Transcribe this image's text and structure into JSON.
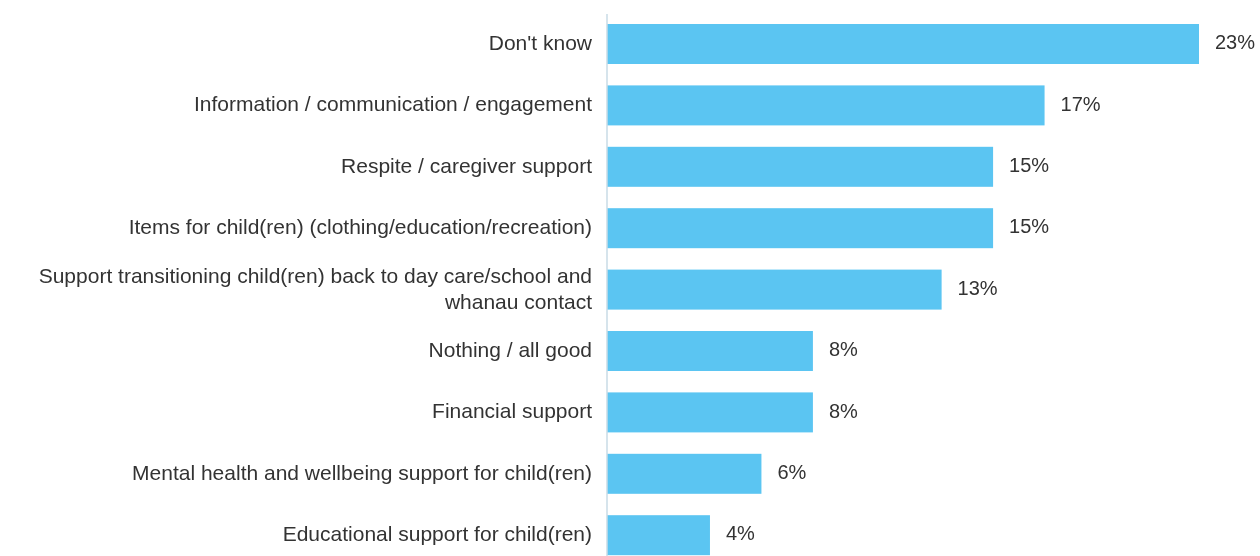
{
  "chart_data": {
    "type": "bar",
    "orientation": "horizontal",
    "categories": [
      "Don't know",
      "Information / communication / engagement",
      "Respite / caregiver support",
      "Items for child(ren) (clothing/education/recreation)",
      "Support transitioning child(ren) back to day care/school and whanau contact",
      "Nothing / all good",
      "Financial support",
      "Mental health and wellbeing support for child(ren)",
      "Educational support for child(ren)"
    ],
    "values": [
      23,
      17,
      15,
      15,
      13,
      8,
      8,
      6,
      4
    ],
    "value_labels": [
      "23%",
      "17%",
      "15%",
      "15%",
      "13%",
      "8%",
      "8%",
      "6%",
      "4%"
    ],
    "color": "#5bc5f2"
  }
}
